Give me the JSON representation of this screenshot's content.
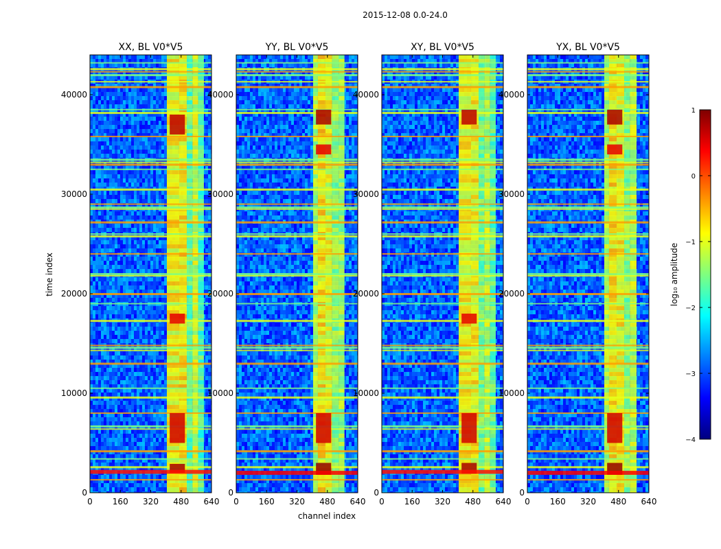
{
  "suptitle": "2015-12-08 0.0-24.0",
  "chart_data": {
    "type": "heatmap",
    "ylabel": "time index",
    "xlabel": "channel index",
    "xlim": [
      0,
      640
    ],
    "ylim": [
      0,
      44000
    ],
    "xticks": [
      "0",
      "160",
      "320",
      "480",
      "640"
    ],
    "yticks": [
      "0",
      "10000",
      "20000",
      "30000",
      "40000"
    ],
    "colorbar": {
      "label": "log₁₀ amplitude",
      "range": [
        -4,
        1
      ],
      "ticks": [
        "1",
        "0",
        "−1",
        "−2",
        "−3",
        "−4"
      ],
      "colormap": [
        "#00007f",
        "#0000ff",
        "#007fff",
        "#00ffff",
        "#7fff7f",
        "#ffff00",
        "#ff7f00",
        "#ff0000",
        "#7f0000"
      ]
    },
    "panels": [
      {
        "title": "XX, BL V0*V5",
        "baseline": -2.9,
        "bands": [
          [
            405,
            470,
            -0.9
          ],
          [
            470,
            510,
            -0.8
          ],
          [
            510,
            540,
            -1.6
          ],
          [
            540,
            570,
            -1.1
          ],
          [
            570,
            600,
            -1.7
          ]
        ],
        "hot": [
          [
            420,
            500,
            2000,
            2900,
            0.8
          ],
          [
            420,
            500,
            5000,
            8000,
            0.6
          ],
          [
            420,
            500,
            17000,
            18000,
            0.5
          ],
          [
            420,
            500,
            36000,
            38000,
            0.7
          ],
          [
            0,
            640,
            1900,
            2300,
            0.3
          ]
        ]
      },
      {
        "title": "YY, BL V0*V5",
        "baseline": -2.9,
        "bands": [
          [
            405,
            430,
            -1.2
          ],
          [
            430,
            470,
            -0.8
          ],
          [
            470,
            505,
            -1.0
          ],
          [
            505,
            540,
            -1.4
          ],
          [
            540,
            570,
            -1.3
          ]
        ],
        "hot": [
          [
            420,
            500,
            1800,
            3000,
            0.9
          ],
          [
            420,
            500,
            5000,
            8000,
            0.6
          ],
          [
            420,
            500,
            34000,
            35000,
            0.5
          ],
          [
            420,
            500,
            37000,
            38500,
            0.8
          ],
          [
            0,
            640,
            1800,
            2200,
            0.4
          ]
        ]
      },
      {
        "title": "XY, BL V0*V5",
        "baseline": -2.9,
        "bands": [
          [
            405,
            470,
            -0.9
          ],
          [
            470,
            510,
            -0.9
          ],
          [
            510,
            540,
            -1.5
          ],
          [
            540,
            570,
            -1.2
          ],
          [
            570,
            600,
            -1.6
          ]
        ],
        "hot": [
          [
            420,
            500,
            1900,
            3000,
            0.8
          ],
          [
            420,
            500,
            5000,
            8000,
            0.6
          ],
          [
            420,
            500,
            17000,
            18000,
            0.5
          ],
          [
            420,
            500,
            37000,
            38500,
            0.7
          ],
          [
            0,
            640,
            1900,
            2300,
            0.3
          ]
        ]
      },
      {
        "title": "YX, BL V0*V5",
        "baseline": -2.9,
        "bands": [
          [
            405,
            430,
            -1.2
          ],
          [
            430,
            470,
            -0.8
          ],
          [
            470,
            510,
            -0.9
          ],
          [
            510,
            540,
            -1.4
          ],
          [
            540,
            575,
            -1.2
          ]
        ],
        "hot": [
          [
            420,
            500,
            1800,
            3000,
            0.9
          ],
          [
            420,
            500,
            5000,
            8000,
            0.6
          ],
          [
            420,
            500,
            34000,
            35000,
            0.5
          ],
          [
            420,
            500,
            37000,
            38500,
            0.8
          ],
          [
            0,
            640,
            1800,
            2200,
            0.4
          ]
        ]
      }
    ],
    "rfi_rows": [
      1300,
      2600,
      3400,
      4200,
      6400,
      6700,
      8000,
      9600,
      10500,
      13000,
      14300,
      14600,
      14800,
      17300,
      19000,
      20000,
      21800,
      22000,
      24000,
      25800,
      26000,
      27200,
      28500,
      28700,
      29000,
      30500,
      32500,
      33000,
      33200,
      33500,
      35800,
      38200,
      38500,
      40800,
      41300,
      42000,
      42300,
      42600,
      43200
    ]
  }
}
